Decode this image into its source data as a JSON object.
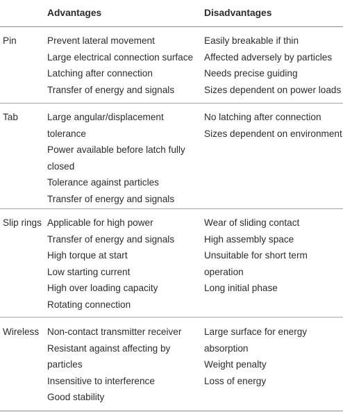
{
  "headers": {
    "advantages": "Advantages",
    "disadvantages": "Disadvantages"
  },
  "rows": [
    {
      "category": "Pin",
      "advantages": [
        "Prevent lateral movement",
        "Large electrical connection surface",
        "Latching after connection",
        "Transfer of energy and signals"
      ],
      "disadvantages": [
        "Easily breakable if thin",
        "Affected adversely by particles",
        "Needs precise guiding",
        "Sizes dependent on power loads"
      ]
    },
    {
      "category": "Tab",
      "advantages": [
        "Large angular/displacement",
        "tolerance",
        "Power available before latch fully",
        "closed",
        "Tolerance against particles",
        "Transfer of energy and signals"
      ],
      "disadvantages": [
        "No latching after connection",
        "Sizes dependent on environment"
      ]
    },
    {
      "category": "Slip rings",
      "advantages": [
        "Applicable for high power",
        "Transfer of energy and signals",
        "High torque at start",
        "Low starting current",
        "High over loading capacity",
        "Rotating connection"
      ],
      "disadvantages": [
        "Wear of sliding contact",
        "High assembly space",
        "Unsuitable for short term",
        "operation",
        "Long initial phase"
      ]
    },
    {
      "category": "Wireless",
      "advantages": [
        "Non-contact transmitter receiver",
        "Resistant against affecting by",
        "particles",
        "Insensitive to interference",
        "Good stability"
      ],
      "disadvantages": [
        "Large surface for energy",
        "absorption",
        "Weight penalty",
        "Loss of energy"
      ]
    }
  ]
}
